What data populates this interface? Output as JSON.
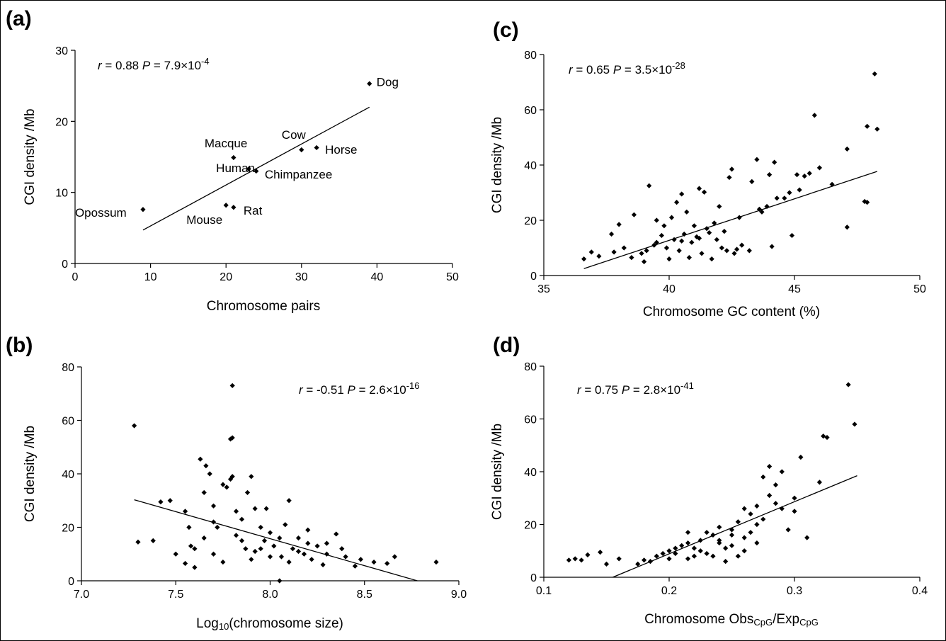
{
  "chart_data": [
    {
      "type": "scatter",
      "panel": "(a)",
      "ylabel": "CGI density /Mb",
      "xlabel": [
        "Chromosome pairs"
      ],
      "annotation": [
        "r",
        " = 0.88  ",
        "P",
        " = 7.9×10",
        "-4"
      ],
      "xlim": [
        0,
        50
      ],
      "xticks": [
        0,
        10,
        20,
        30,
        40,
        50
      ],
      "ylim": [
        0,
        30
      ],
      "yticks": [
        0,
        10,
        20,
        30
      ],
      "x": [
        9,
        20,
        21,
        23,
        21,
        24,
        30,
        32,
        39
      ],
      "y": [
        7.6,
        8.2,
        7.9,
        13.3,
        14.9,
        13,
        16,
        16.3,
        25.3
      ],
      "point_labels": [
        "Opossum",
        "Mouse",
        "Rat",
        "Human",
        "Macque",
        "Chimpanzee",
        "Cow",
        "Horse",
        "Dog"
      ],
      "trend_line": {
        "x": [
          9,
          39
        ],
        "y": [
          4.7,
          22
        ]
      }
    },
    {
      "type": "scatter",
      "panel": "(b)",
      "ylabel": "CGI density /Mb",
      "xlabel": [
        "Log",
        "10",
        "(chromosome size)"
      ],
      "annotation": [
        "r",
        " = -0.51 ",
        "P",
        " = 2.6×10",
        "-16"
      ],
      "xlim": [
        7.0,
        9.0
      ],
      "xticks": [
        {
          "value": 7.0,
          "label": "7.0"
        },
        7.5,
        {
          "value": 8.0,
          "label": "8.0"
        },
        8.5,
        {
          "value": 9.0,
          "label": "9.0"
        }
      ],
      "ylim": [
        0,
        80
      ],
      "yticks": [
        0,
        20,
        40,
        60,
        80
      ],
      "x": [
        7.28,
        7.8,
        7.8,
        7.79,
        7.3,
        7.38,
        7.42,
        7.47,
        7.5,
        7.55,
        7.57,
        7.6,
        7.63,
        7.65,
        7.66,
        7.68,
        7.7,
        7.72,
        7.75,
        7.77,
        7.79,
        7.8,
        7.82,
        7.85,
        7.88,
        7.9,
        7.92,
        7.95,
        7.97,
        8.0,
        8.02,
        8.05,
        8.06,
        8.08,
        8.1,
        8.12,
        8.15,
        8.18,
        8.2,
        8.22,
        8.25,
        8.28,
        8.3,
        8.35,
        8.38,
        8.4,
        8.45,
        8.48,
        8.55,
        8.62,
        8.66,
        8.88,
        7.6,
        7.7,
        7.75,
        7.85,
        7.9,
        7.95,
        8.0,
        8.05,
        7.65,
        7.7,
        7.58,
        7.55,
        7.82,
        7.92,
        8.1,
        8.2,
        8.3,
        7.98,
        7.87,
        8.15
      ],
      "y": [
        58,
        73,
        53.5,
        53,
        14.5,
        15,
        29.5,
        30,
        10,
        26,
        20,
        12,
        45.5,
        33,
        43,
        40,
        28,
        20,
        36,
        35,
        38,
        39,
        26,
        23,
        33,
        39,
        27,
        20,
        15,
        18,
        13,
        0,
        9,
        21,
        30,
        12,
        16,
        10,
        14,
        8,
        13,
        6,
        10,
        17.5,
        12,
        9,
        5.5,
        8,
        7,
        6.5,
        9,
        7,
        5,
        10,
        7,
        15,
        8,
        12,
        9,
        16,
        16,
        22,
        13,
        6.5,
        17,
        11,
        7,
        19,
        14,
        27,
        12,
        11
      ],
      "trend_line": {
        "x": [
          7.28,
          8.78
        ],
        "y": [
          30.3,
          0
        ]
      }
    },
    {
      "type": "scatter",
      "panel": "(c)",
      "ylabel": "CGI density /Mb",
      "xlabel": [
        "Chromosome GC content (%)"
      ],
      "annotation": [
        "r",
        " = 0.65  ",
        "P",
        " = 3.5×10",
        "-28"
      ],
      "xlim": [
        35,
        50
      ],
      "xticks": [
        35,
        40,
        45,
        50
      ],
      "ylim": [
        0,
        80
      ],
      "yticks": [
        0,
        20,
        40,
        60,
        80
      ],
      "x": [
        48.2,
        45.8,
        47.9,
        48.3,
        47.1,
        47.9,
        47.8,
        47.1,
        46.5,
        46,
        45.6,
        45.4,
        45.1,
        45.2,
        44.8,
        44.6,
        44.2,
        44,
        43.5,
        43.3,
        42.5,
        42.4,
        44.1,
        44.9,
        43.6,
        42.8,
        41.2,
        41.4,
        40.5,
        40.3,
        39.2,
        40.7,
        40.1,
        39.8,
        39.5,
        38.6,
        38,
        37.7,
        36.6,
        36.9,
        37.2,
        37.8,
        38.2,
        38.5,
        39,
        39.1,
        39.5,
        39.9,
        40.2,
        40.4,
        40.6,
        40.9,
        41.1,
        41.3,
        41.5,
        41.7,
        41.9,
        42.1,
        42.3,
        42.6,
        42.9,
        43.2,
        40,
        40.8,
        41,
        41.6,
        42.2,
        39.4,
        39.7,
        38.9,
        43.9,
        44.3,
        42,
        41.8,
        40.5,
        41.2,
        42.7,
        43.7
      ],
      "y": [
        73,
        58,
        54,
        53,
        45.8,
        26.5,
        26.8,
        17.5,
        33,
        39,
        37,
        36,
        36.5,
        31,
        30,
        28,
        41,
        36.5,
        42,
        34,
        38.5,
        35.5,
        10.5,
        14.5,
        24,
        21,
        31.5,
        30.2,
        29.5,
        26.5,
        32.5,
        23,
        21,
        18,
        20,
        22,
        18.5,
        15,
        6,
        8.5,
        7,
        8.5,
        10,
        6.5,
        5,
        9,
        12,
        10,
        13,
        9,
        15,
        12,
        14,
        8,
        17,
        6,
        13,
        10,
        9,
        8,
        11,
        9,
        6,
        6.5,
        18,
        15.5,
        16,
        11,
        14.5,
        8,
        25,
        28,
        25,
        19,
        12.5,
        13.5,
        9.5,
        23
      ],
      "trend_line": {
        "x": [
          36.6,
          48.3
        ],
        "y": [
          2.5,
          37.7
        ]
      }
    },
    {
      "type": "scatter",
      "panel": "(d)",
      "ylabel": "CGI density /Mb",
      "xlabel": [
        "Chromosome Obs",
        "CpG",
        "/Exp",
        "CpG"
      ],
      "annotation": [
        "r",
        " = 0.75  ",
        "P",
        " = 2.8×10",
        "-41"
      ],
      "xlim": [
        0.1,
        0.4
      ],
      "xticks": [
        0.1,
        0.2,
        0.3,
        0.4
      ],
      "ylim": [
        0,
        80
      ],
      "yticks": [
        0,
        20,
        40,
        60,
        80
      ],
      "x": [
        0.12,
        0.125,
        0.13,
        0.135,
        0.145,
        0.15,
        0.16,
        0.175,
        0.18,
        0.19,
        0.2,
        0.205,
        0.21,
        0.215,
        0.22,
        0.225,
        0.23,
        0.235,
        0.24,
        0.245,
        0.25,
        0.255,
        0.26,
        0.265,
        0.27,
        0.275,
        0.28,
        0.285,
        0.29,
        0.295,
        0.3,
        0.305,
        0.31,
        0.32,
        0.323,
        0.326,
        0.343,
        0.348,
        0.2,
        0.22,
        0.23,
        0.24,
        0.25,
        0.26,
        0.27,
        0.28,
        0.29,
        0.215,
        0.225,
        0.235,
        0.245,
        0.255,
        0.265,
        0.275,
        0.285,
        0.3,
        0.215,
        0.195,
        0.185,
        0.205,
        0.24,
        0.25,
        0.26,
        0.27
      ],
      "y": [
        6.5,
        7,
        6.5,
        8.5,
        9.5,
        5,
        7,
        5,
        6.5,
        8,
        10,
        9,
        12,
        7,
        11,
        14,
        9,
        16,
        13,
        11,
        18,
        21,
        15,
        24,
        27,
        38,
        42,
        35,
        26,
        18,
        30,
        45.5,
        15,
        36,
        53.5,
        53,
        73,
        58,
        7,
        8,
        17,
        19,
        12,
        10,
        13,
        31,
        40,
        13,
        10,
        8,
        6,
        8,
        17,
        22,
        28,
        25,
        17,
        9,
        6,
        11,
        14,
        16,
        26,
        20
      ],
      "trend_line": {
        "x": [
          0.155,
          0.35
        ],
        "y": [
          0,
          38.5
        ]
      }
    }
  ]
}
